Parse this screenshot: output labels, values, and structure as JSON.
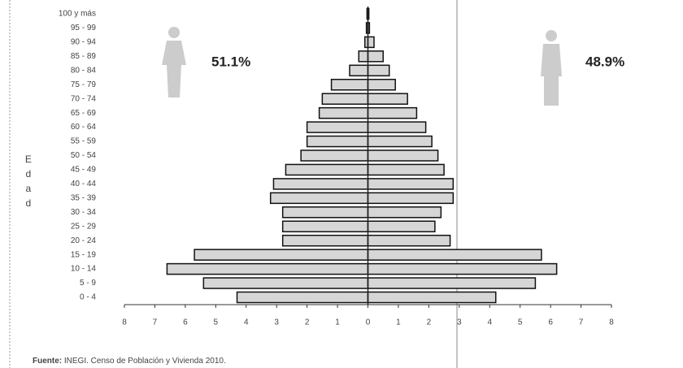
{
  "chart_data": {
    "type": "pyramid",
    "categories": [
      "0 - 4",
      "5 - 9",
      "10 - 14",
      "15 - 19",
      "20 - 24",
      "25 - 29",
      "30 - 34",
      "35 - 39",
      "40 - 44",
      "45 - 49",
      "50 - 54",
      "55 - 59",
      "60 - 64",
      "65 - 69",
      "70 - 74",
      "75 - 79",
      "80 - 84",
      "85 - 89",
      "90 - 94",
      "95 - 99",
      "100 y más"
    ],
    "series": [
      {
        "color": "#d6d6d6",
        "values": [
          4.3,
          5.4,
          6.6,
          5.7,
          2.8,
          2.8,
          2.8,
          3.2,
          3.1,
          2.7,
          2.2,
          2.0,
          2.0,
          1.6,
          1.5,
          1.2,
          0.6,
          0.3,
          0.1,
          0.05,
          0.03
        ]
      },
      {
        "color": "#d6d6d6",
        "values": [
          4.2,
          5.5,
          6.2,
          5.7,
          2.7,
          2.2,
          2.4,
          2.8,
          2.8,
          2.5,
          2.3,
          2.1,
          1.9,
          1.6,
          1.3,
          0.9,
          0.7,
          0.5,
          0.2,
          0.05,
          0.03
        ]
      }
    ],
    "xlim": [
      -8,
      8
    ],
    "xticks": [
      {
        "value": -8,
        "label": "8"
      },
      {
        "value": -7,
        "label": "7"
      },
      {
        "value": -6,
        "label": "6"
      },
      {
        "value": -5,
        "label": "5"
      },
      {
        "value": -4,
        "label": "4"
      },
      {
        "value": -3,
        "label": "3"
      },
      {
        "value": -2,
        "label": "2"
      },
      {
        "value": -1,
        "label": "1"
      },
      0,
      1,
      2,
      3,
      4,
      5,
      6,
      7,
      8
    ],
    "ylabel": "Edad",
    "annotations": [
      "51.1%",
      "48.9%"
    ],
    "source_label": "Fuente:",
    "source_text": " INEGI. Censo de Población y Vivienda 2010."
  }
}
